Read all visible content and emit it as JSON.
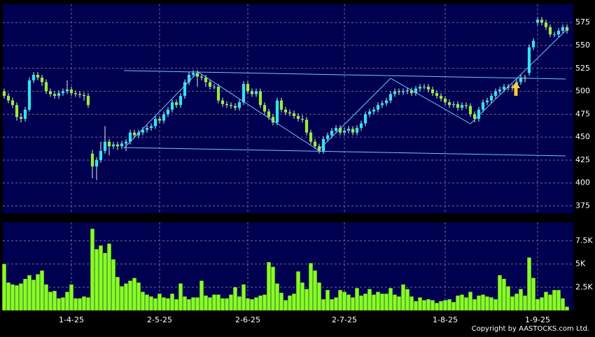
{
  "chart_data": {
    "type": "candlestick",
    "copyright": "Copyright by AASTOCKS.com Ltd.",
    "up_color": "#2ee6f0",
    "down_color": "#99ee33",
    "volume_color": "#88ff22",
    "grid": true,
    "xlim": [
      -1,
      135.5
    ],
    "xticks": [
      {
        "value": 16,
        "label": "1-4-25"
      },
      {
        "value": 37,
        "label": "2-5-25"
      },
      {
        "value": 58,
        "label": "2-6-25"
      },
      {
        "value": 81,
        "label": "2-7-25"
      },
      {
        "value": 105,
        "label": "1-8-25"
      },
      {
        "value": 127,
        "label": "1-9-25"
      }
    ],
    "ylim": [
      367,
      595
    ],
    "yticks": [
      375,
      400,
      425,
      450,
      475,
      500,
      525,
      550,
      575
    ],
    "y2lim": [
      0,
      9500
    ],
    "y2ticks": [
      {
        "value": 2500,
        "label": "2.5K"
      },
      {
        "value": 5000,
        "label": "5K"
      },
      {
        "value": 7500,
        "label": "7.5K"
      }
    ],
    "open": [
      500,
      495,
      490,
      485,
      472,
      470,
      480,
      512,
      518,
      515,
      510,
      500,
      497,
      495,
      498,
      500,
      502,
      498,
      497,
      496,
      495,
      432,
      418,
      425,
      435,
      445,
      440,
      442,
      440,
      443,
      445,
      455,
      452,
      455,
      458,
      460,
      462,
      470,
      468,
      475,
      480,
      488,
      485,
      495,
      510,
      518,
      520,
      516,
      515,
      510,
      505,
      505,
      490,
      486,
      485,
      484,
      482,
      488,
      508,
      500,
      497,
      500,
      485,
      478,
      472,
      466,
      490,
      480,
      477,
      476,
      473,
      470,
      469,
      455,
      445,
      440,
      435,
      448,
      452,
      457,
      460,
      455,
      457,
      459,
      455,
      460,
      465,
      475,
      478,
      480,
      485,
      487,
      490,
      497,
      500,
      499,
      500,
      501,
      498,
      503,
      505,
      505,
      502,
      498,
      495,
      492,
      488,
      485,
      486,
      482,
      485,
      484,
      475,
      470,
      480,
      488,
      490,
      495,
      500,
      502,
      505,
      504,
      505,
      510,
      515,
      520,
      548,
      575,
      578,
      575,
      570,
      562,
      562,
      566,
      570
    ],
    "high": [
      503,
      498,
      493,
      488,
      476,
      483,
      515,
      521,
      521,
      518,
      513,
      503,
      500,
      501,
      503,
      512,
      505,
      501,
      500,
      499,
      498,
      436,
      428,
      445,
      462,
      448,
      445,
      445,
      446,
      448,
      458,
      458,
      458,
      461,
      463,
      465,
      473,
      473,
      478,
      483,
      491,
      491,
      498,
      513,
      521,
      523,
      523,
      519,
      518,
      513,
      508,
      508,
      493,
      489,
      488,
      487,
      491,
      511,
      511,
      503,
      503,
      503,
      488,
      481,
      475,
      493,
      493,
      483,
      480,
      479,
      476,
      474,
      472,
      458,
      448,
      443,
      451,
      455,
      460,
      463,
      463,
      460,
      462,
      462,
      463,
      468,
      478,
      481,
      483,
      488,
      490,
      493,
      500,
      503,
      503,
      503,
      504,
      504,
      506,
      508,
      508,
      508,
      505,
      501,
      498,
      495,
      491,
      489,
      489,
      488,
      488,
      487,
      478,
      483,
      491,
      493,
      498,
      503,
      505,
      508,
      508,
      508,
      513,
      518,
      518,
      551,
      558,
      581,
      581,
      578,
      573,
      565,
      569,
      573,
      573
    ],
    "low": [
      492,
      487,
      482,
      468,
      466,
      467,
      478,
      509,
      512,
      506,
      497,
      494,
      492,
      492,
      495,
      497,
      495,
      494,
      493,
      490,
      482,
      405,
      403,
      422,
      432,
      430,
      437,
      436,
      437,
      435,
      442,
      449,
      449,
      452,
      455,
      457,
      459,
      465,
      465,
      472,
      477,
      482,
      482,
      492,
      507,
      515,
      505,
      512,
      505,
      502,
      502,
      487,
      483,
      482,
      481,
      479,
      479,
      485,
      497,
      494,
      494,
      482,
      475,
      469,
      463,
      463,
      477,
      474,
      473,
      470,
      467,
      466,
      452,
      442,
      437,
      432,
      432,
      445,
      449,
      454,
      452,
      452,
      454,
      452,
      452,
      457,
      462,
      472,
      475,
      477,
      482,
      484,
      487,
      494,
      496,
      496,
      497,
      495,
      495,
      500,
      502,
      499,
      495,
      492,
      489,
      485,
      482,
      482,
      479,
      479,
      481,
      472,
      466,
      467,
      477,
      485,
      487,
      492,
      497,
      499,
      501,
      501,
      502,
      507,
      510,
      517,
      545,
      572,
      572,
      567,
      559,
      559,
      559,
      563,
      563
    ],
    "close": [
      495,
      490,
      485,
      472,
      470,
      480,
      512,
      518,
      515,
      510,
      500,
      497,
      495,
      498,
      500,
      502,
      498,
      497,
      496,
      495,
      485,
      418,
      425,
      435,
      445,
      440,
      442,
      440,
      443,
      445,
      455,
      452,
      455,
      458,
      460,
      462,
      470,
      468,
      475,
      480,
      488,
      485,
      495,
      510,
      518,
      520,
      516,
      515,
      510,
      505,
      505,
      490,
      486,
      485,
      484,
      482,
      488,
      508,
      500,
      497,
      500,
      485,
      478,
      472,
      466,
      490,
      480,
      477,
      476,
      473,
      470,
      469,
      455,
      445,
      440,
      435,
      448,
      452,
      457,
      460,
      455,
      457,
      459,
      455,
      460,
      465,
      475,
      478,
      480,
      485,
      487,
      490,
      497,
      500,
      499,
      500,
      501,
      498,
      503,
      505,
      505,
      502,
      498,
      495,
      492,
      488,
      485,
      486,
      482,
      485,
      484,
      475,
      470,
      480,
      488,
      490,
      495,
      500,
      502,
      505,
      504,
      505,
      510,
      515,
      514,
      548,
      555,
      578,
      575,
      570,
      562,
      562,
      566,
      570,
      566
    ],
    "volume": [
      5000,
      3000,
      2800,
      2700,
      2900,
      3400,
      3800,
      3300,
      3900,
      4300,
      2800,
      2000,
      2100,
      1300,
      1400,
      2000,
      2800,
      1300,
      1300,
      1500,
      1400,
      8800,
      6600,
      7000,
      6200,
      7200,
      5500,
      3600,
      2600,
      2900,
      3200,
      3500,
      3000,
      2000,
      1700,
      1500,
      1300,
      1800,
      1400,
      1300,
      1800,
      1200,
      2900,
      1500,
      1200,
      1400,
      1400,
      3200,
      1600,
      1400,
      1700,
      1700,
      1300,
      1300,
      1700,
      2500,
      1500,
      2800,
      1300,
      1200,
      1400,
      1600,
      1700,
      5200,
      4700,
      2900,
      1900,
      1100,
      1600,
      1800,
      4200,
      3000,
      2300,
      5100,
      4300,
      3000,
      1200,
      2200,
      1200,
      1400,
      2200,
      2000,
      1700,
      1400,
      2400,
      1600,
      1800,
      2300,
      1700,
      2000,
      1800,
      1800,
      2400,
      1700,
      1500,
      2800,
      2300,
      1500,
      1000,
      1400,
      1100,
      1200,
      1100,
      800,
      1000,
      1100,
      1200,
      900,
      1600,
      1700,
      1400,
      2000,
      1200,
      1600,
      1700,
      1500,
      1400,
      1200,
      3800,
      3400,
      2600,
      1500,
      1800,
      2300,
      1600,
      5700,
      3500,
      1200,
      1400,
      2000,
      1700,
      2200,
      2200,
      1300,
      400
    ]
  }
}
